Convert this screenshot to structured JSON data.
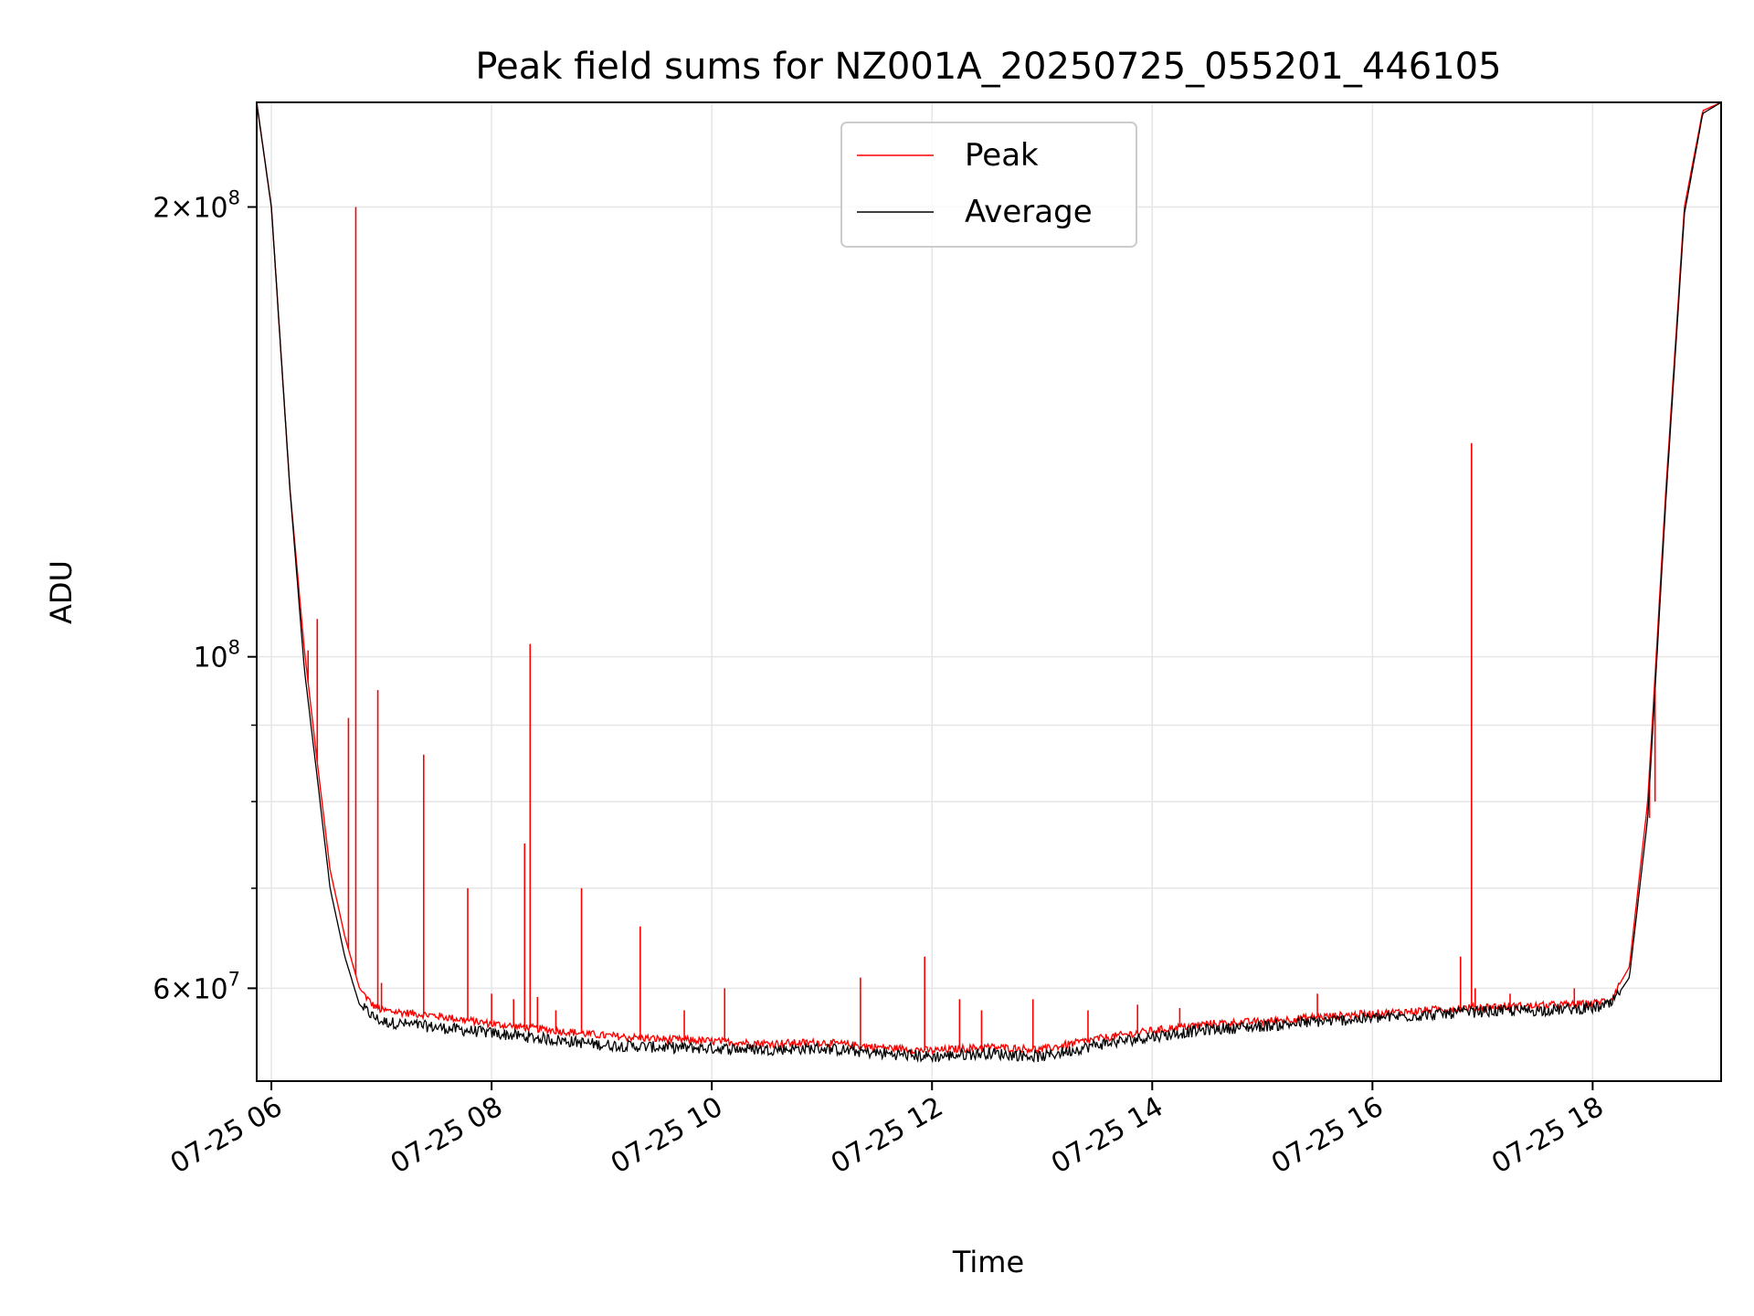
{
  "chart_data": {
    "type": "line",
    "title": "Peak field sums for NZ001A_20250725_055201_446105",
    "xlabel": "Time",
    "ylabel": "ADU",
    "x_ticks": [
      {
        "x": "2025-07-25 06:00",
        "label": "07-25 06"
      },
      {
        "x": "2025-07-25 08:00",
        "label": "07-25 08"
      },
      {
        "x": "2025-07-25 10:00",
        "label": "07-25 10"
      },
      {
        "x": "2025-07-25 12:00",
        "label": "07-25 12"
      },
      {
        "x": "2025-07-25 14:00",
        "label": "07-25 14"
      },
      {
        "x": "2025-07-25 16:00",
        "label": "07-25 16"
      },
      {
        "x": "2025-07-25 18:00",
        "label": "07-25 18"
      }
    ],
    "y_scale": "log",
    "ylim": [
      52000000,
      235000000
    ],
    "xlim": [
      "2025-07-25 05:52",
      "2025-07-25 19:10"
    ],
    "y_major_ticks": [
      {
        "value": 60000000,
        "mantissa": "6",
        "exponent": "7"
      },
      {
        "value": 100000000,
        "mantissa": "",
        "exponent": "8"
      },
      {
        "value": 200000000,
        "mantissa": "2",
        "exponent": "8"
      }
    ],
    "y_minor_ticks": [
      70000000,
      80000000,
      90000000
    ],
    "grid": true,
    "legend_position": "upper center",
    "series": [
      {
        "name": "Peak",
        "color": "#ff0000",
        "points": [
          [
            "2025-07-25 05:52",
            235000000
          ],
          [
            "2025-07-25 06:00",
            200000000
          ],
          [
            "2025-07-25 06:10",
            130000000
          ],
          [
            "2025-07-25 06:18",
            101000000
          ],
          [
            "2025-07-25 06:25",
            85000000
          ],
          [
            "2025-07-25 06:32",
            72000000
          ],
          [
            "2025-07-25 06:40",
            65000000
          ],
          [
            "2025-07-25 06:48",
            60000000
          ],
          [
            "2025-07-25 06:55",
            58500000
          ],
          [
            "2025-07-25 07:00",
            58000000
          ],
          [
            "2025-07-25 07:30",
            57500000
          ],
          [
            "2025-07-25 08:00",
            56800000
          ],
          [
            "2025-07-25 08:30",
            56300000
          ],
          [
            "2025-07-25 09:00",
            55800000
          ],
          [
            "2025-07-25 09:30",
            55500000
          ],
          [
            "2025-07-25 10:00",
            55300000
          ],
          [
            "2025-07-25 10:30",
            55100000
          ],
          [
            "2025-07-25 11:00",
            55200000
          ],
          [
            "2025-07-25 11:30",
            54800000
          ],
          [
            "2025-07-25 12:00",
            54500000
          ],
          [
            "2025-07-25 12:30",
            54800000
          ],
          [
            "2025-07-25 13:00",
            54600000
          ],
          [
            "2025-07-25 13:30",
            55500000
          ],
          [
            "2025-07-25 14:00",
            56200000
          ],
          [
            "2025-07-25 14:30",
            56800000
          ],
          [
            "2025-07-25 15:00",
            57000000
          ],
          [
            "2025-07-25 15:30",
            57400000
          ],
          [
            "2025-07-25 16:00",
            57700000
          ],
          [
            "2025-07-25 16:30",
            58000000
          ],
          [
            "2025-07-25 17:00",
            58300000
          ],
          [
            "2025-07-25 17:30",
            58400000
          ],
          [
            "2025-07-25 18:00",
            58600000
          ],
          [
            "2025-07-25 18:10",
            59000000
          ],
          [
            "2025-07-25 18:20",
            62000000
          ],
          [
            "2025-07-25 18:30",
            80000000
          ],
          [
            "2025-07-25 18:40",
            130000000
          ],
          [
            "2025-07-25 18:50",
            200000000
          ],
          [
            "2025-07-25 19:00",
            232000000
          ],
          [
            "2025-07-25 19:10",
            235000000
          ]
        ],
        "spikes": [
          [
            "2025-07-25 06:20",
            101000000
          ],
          [
            "2025-07-25 06:25",
            106000000
          ],
          [
            "2025-07-25 06:42",
            91000000
          ],
          [
            "2025-07-25 06:46",
            200000000
          ],
          [
            "2025-07-25 06:58",
            95000000
          ],
          [
            "2025-07-25 07:00",
            60500000
          ],
          [
            "2025-07-25 07:23",
            86000000
          ],
          [
            "2025-07-25 07:47",
            70000000
          ],
          [
            "2025-07-25 08:00",
            59500000
          ],
          [
            "2025-07-25 08:12",
            59000000
          ],
          [
            "2025-07-25 08:18",
            75000000
          ],
          [
            "2025-07-25 08:21",
            102000000
          ],
          [
            "2025-07-25 08:25",
            59200000
          ],
          [
            "2025-07-25 08:35",
            58000000
          ],
          [
            "2025-07-25 08:49",
            70000000
          ],
          [
            "2025-07-25 09:21",
            66000000
          ],
          [
            "2025-07-25 09:45",
            58000000
          ],
          [
            "2025-07-25 10:07",
            60000000
          ],
          [
            "2025-07-25 11:21",
            61000000
          ],
          [
            "2025-07-25 11:56",
            63000000
          ],
          [
            "2025-07-25 12:15",
            59000000
          ],
          [
            "2025-07-25 12:27",
            58000000
          ],
          [
            "2025-07-25 12:55",
            59000000
          ],
          [
            "2025-07-25 13:25",
            58000000
          ],
          [
            "2025-07-25 13:52",
            58500000
          ],
          [
            "2025-07-25 14:15",
            58200000
          ],
          [
            "2025-07-25 15:30",
            59500000
          ],
          [
            "2025-07-25 16:48",
            63000000
          ],
          [
            "2025-07-25 16:54",
            139000000
          ],
          [
            "2025-07-25 16:56",
            60000000
          ],
          [
            "2025-07-25 17:15",
            59500000
          ],
          [
            "2025-07-25 17:50",
            60000000
          ],
          [
            "2025-07-25 18:31",
            78000000
          ],
          [
            "2025-07-25 18:34",
            80000000
          ]
        ]
      },
      {
        "name": "Average",
        "color": "#000000",
        "points": [
          [
            "2025-07-25 05:52",
            235000000
          ],
          [
            "2025-07-25 06:00",
            200000000
          ],
          [
            "2025-07-25 06:10",
            130000000
          ],
          [
            "2025-07-25 06:18",
            98000000
          ],
          [
            "2025-07-25 06:25",
            83000000
          ],
          [
            "2025-07-25 06:32",
            70000000
          ],
          [
            "2025-07-25 06:40",
            63000000
          ],
          [
            "2025-07-25 06:48",
            58500000
          ],
          [
            "2025-07-25 06:55",
            57500000
          ],
          [
            "2025-07-25 07:00",
            57000000
          ],
          [
            "2025-07-25 07:30",
            56500000
          ],
          [
            "2025-07-25 08:00",
            56000000
          ],
          [
            "2025-07-25 08:30",
            55500000
          ],
          [
            "2025-07-25 09:00",
            55000000
          ],
          [
            "2025-07-25 09:30",
            54800000
          ],
          [
            "2025-07-25 10:00",
            54700000
          ],
          [
            "2025-07-25 10:30",
            54600000
          ],
          [
            "2025-07-25 11:00",
            54700000
          ],
          [
            "2025-07-25 11:30",
            54300000
          ],
          [
            "2025-07-25 12:00",
            54000000
          ],
          [
            "2025-07-25 12:30",
            54300000
          ],
          [
            "2025-07-25 13:00",
            54000000
          ],
          [
            "2025-07-25 13:30",
            55000000
          ],
          [
            "2025-07-25 14:00",
            55700000
          ],
          [
            "2025-07-25 14:30",
            56300000
          ],
          [
            "2025-07-25 15:00",
            56600000
          ],
          [
            "2025-07-25 15:30",
            57000000
          ],
          [
            "2025-07-25 16:00",
            57300000
          ],
          [
            "2025-07-25 16:30",
            57600000
          ],
          [
            "2025-07-25 17:00",
            57900000
          ],
          [
            "2025-07-25 17:30",
            58000000
          ],
          [
            "2025-07-25 18:00",
            58200000
          ],
          [
            "2025-07-25 18:10",
            58500000
          ],
          [
            "2025-07-25 18:20",
            61000000
          ],
          [
            "2025-07-25 18:30",
            78000000
          ],
          [
            "2025-07-25 18:40",
            128000000
          ],
          [
            "2025-07-25 18:50",
            198000000
          ],
          [
            "2025-07-25 19:00",
            231000000
          ],
          [
            "2025-07-25 19:10",
            235000000
          ]
        ]
      }
    ]
  }
}
